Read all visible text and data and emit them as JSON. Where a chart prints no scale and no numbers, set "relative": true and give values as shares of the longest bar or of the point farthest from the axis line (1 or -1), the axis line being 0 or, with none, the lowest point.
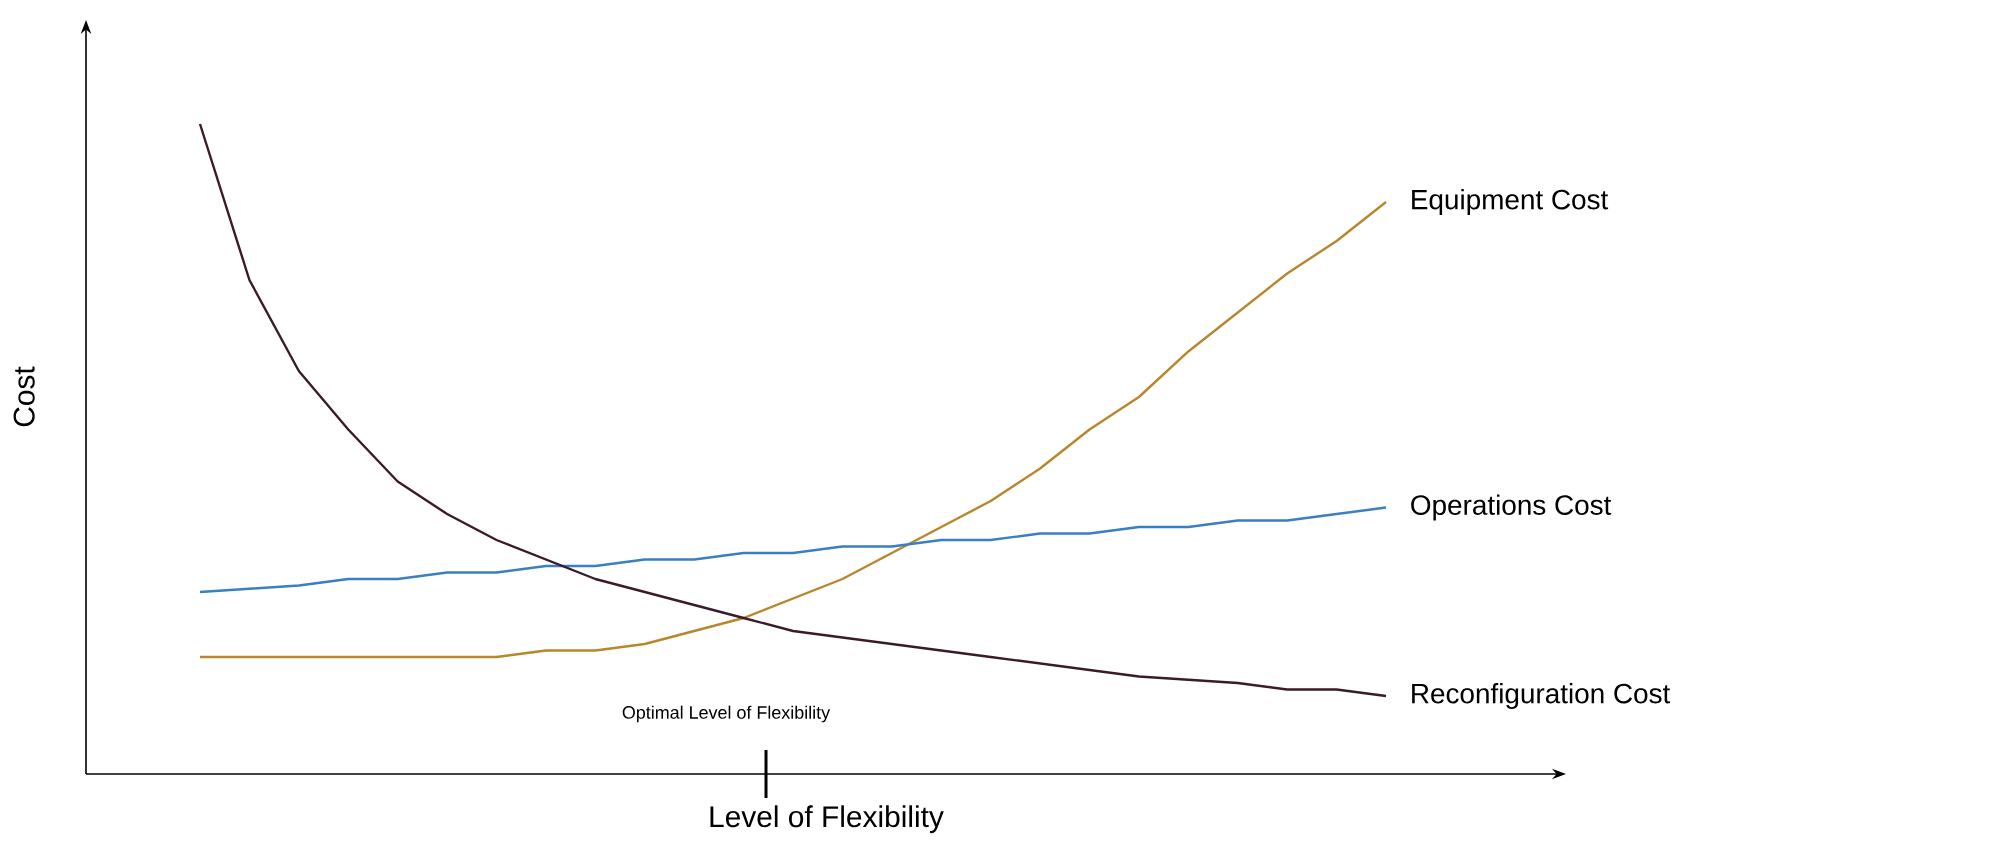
{
  "chart_data": {
    "type": "line",
    "relative": true,
    "xlabel": "Level of Flexibility",
    "ylabel": "Cost",
    "annotations": [
      "Optimal Level of Flexibility"
    ],
    "categories": [
      null,
      null,
      null,
      null,
      null,
      null,
      null,
      null,
      null,
      null,
      null,
      null,
      null,
      null,
      null,
      null,
      null,
      null,
      null,
      null,
      null,
      null,
      null,
      null,
      null
    ],
    "series": [
      {
        "name": "Equipment Cost",
        "color": "#b8862b",
        "values": [
          0.18,
          0.18,
          0.18,
          0.18,
          0.18,
          0.18,
          0.18,
          0.19,
          0.19,
          0.2,
          0.22,
          0.24,
          0.27,
          0.3,
          0.34,
          0.38,
          0.42,
          0.47,
          0.53,
          0.58,
          0.65,
          0.71,
          0.77,
          0.82,
          0.88
        ]
      },
      {
        "name": "Operations Cost",
        "color": "#3a7fc0",
        "values": [
          0.28,
          0.285,
          0.29,
          0.3,
          0.3,
          0.31,
          0.31,
          0.32,
          0.32,
          0.33,
          0.33,
          0.34,
          0.34,
          0.35,
          0.35,
          0.36,
          0.36,
          0.37,
          0.37,
          0.38,
          0.38,
          0.39,
          0.39,
          0.4,
          0.41
        ]
      },
      {
        "name": "Reconfiguration Cost",
        "color": "#3b1a2a",
        "values": [
          1,
          0.76,
          0.62,
          0.53,
          0.45,
          0.4,
          0.36,
          0.33,
          0.3,
          0.28,
          0.26,
          0.24,
          0.22,
          0.21,
          0.2,
          0.19,
          0.18,
          0.17,
          0.16,
          0.15,
          0.145,
          0.14,
          0.13,
          0.13,
          0.12
        ]
      }
    ]
  }
}
